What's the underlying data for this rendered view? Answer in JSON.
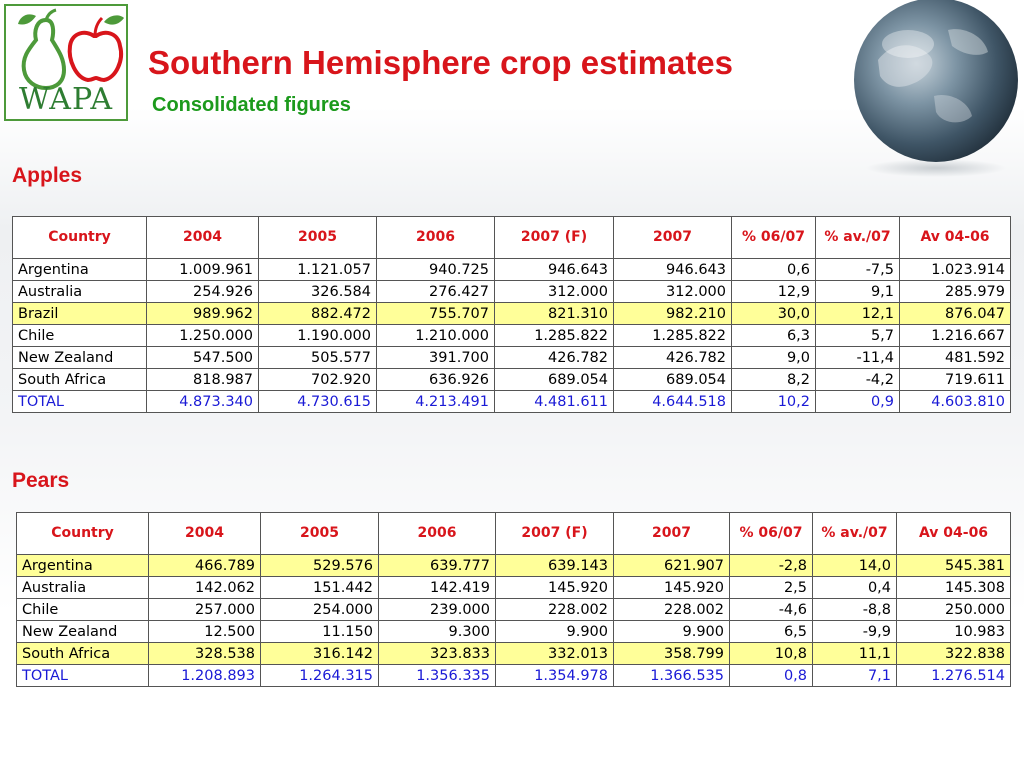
{
  "logo": {
    "text": "WAPA"
  },
  "title": "Southern Hemisphere crop estimates",
  "subtitle": "Consolidated figures",
  "headers": [
    "Country",
    "2004",
    "2005",
    "2006",
    "2007 (F)",
    "2007",
    "% 06/07",
    "% av./07",
    "Av 04-06"
  ],
  "colors": {
    "title": "#d8151b",
    "subtitle": "#1c9a1c",
    "highlight": "#ffff99",
    "total": "#1a1ad6"
  },
  "apples": {
    "label": "Apples",
    "rows": [
      {
        "country": "Argentina",
        "v2004": "1.009.961",
        "v2005": "1.121.057",
        "v2006": "940.725",
        "v2007f": "946.643",
        "v2007": "946.643",
        "pct0607": "0,6",
        "pctav07": "-7,5",
        "av0406": "1.023.914",
        "highlight": false
      },
      {
        "country": "Australia",
        "v2004": "254.926",
        "v2005": "326.584",
        "v2006": "276.427",
        "v2007f": "312.000",
        "v2007": "312.000",
        "pct0607": "12,9",
        "pctav07": "9,1",
        "av0406": "285.979",
        "highlight": false
      },
      {
        "country": "Brazil",
        "v2004": "989.962",
        "v2005": "882.472",
        "v2006": "755.707",
        "v2007f": "821.310",
        "v2007": "982.210",
        "pct0607": "30,0",
        "pctav07": "12,1",
        "av0406": "876.047",
        "highlight": true
      },
      {
        "country": "Chile",
        "v2004": "1.250.000",
        "v2005": "1.190.000",
        "v2006": "1.210.000",
        "v2007f": "1.285.822",
        "v2007": "1.285.822",
        "pct0607": "6,3",
        "pctav07": "5,7",
        "av0406": "1.216.667",
        "highlight": false
      },
      {
        "country": "New Zealand",
        "v2004": "547.500",
        "v2005": "505.577",
        "v2006": "391.700",
        "v2007f": "426.782",
        "v2007": "426.782",
        "pct0607": "9,0",
        "pctav07": "-11,4",
        "av0406": "481.592",
        "highlight": false
      },
      {
        "country": "South Africa",
        "v2004": "818.987",
        "v2005": "702.920",
        "v2006": "636.926",
        "v2007f": "689.054",
        "v2007": "689.054",
        "pct0607": "8,2",
        "pctav07": "-4,2",
        "av0406": "719.611",
        "highlight": false
      }
    ],
    "total": {
      "country": "TOTAL",
      "v2004": "4.873.340",
      "v2005": "4.730.615",
      "v2006": "4.213.491",
      "v2007f": "4.481.611",
      "v2007": "4.644.518",
      "pct0607": "10,2",
      "pctav07": "0,9",
      "av0406": "4.603.810"
    }
  },
  "pears": {
    "label": "Pears",
    "rows": [
      {
        "country": "Argentina",
        "v2004": "466.789",
        "v2005": "529.576",
        "v2006": "639.777",
        "v2007f": "639.143",
        "v2007": "621.907",
        "pct0607": "-2,8",
        "pctav07": "14,0",
        "av0406": "545.381",
        "highlight": true
      },
      {
        "country": "Australia",
        "v2004": "142.062",
        "v2005": "151.442",
        "v2006": "142.419",
        "v2007f": "145.920",
        "v2007": "145.920",
        "pct0607": "2,5",
        "pctav07": "0,4",
        "av0406": "145.308",
        "highlight": false
      },
      {
        "country": "Chile",
        "v2004": "257.000",
        "v2005": "254.000",
        "v2006": "239.000",
        "v2007f": "228.002",
        "v2007": "228.002",
        "pct0607": "-4,6",
        "pctav07": "-8,8",
        "av0406": "250.000",
        "highlight": false
      },
      {
        "country": "New Zealand",
        "v2004": "12.500",
        "v2005": "11.150",
        "v2006": "9.300",
        "v2007f": "9.900",
        "v2007": "9.900",
        "pct0607": "6,5",
        "pctav07": "-9,9",
        "av0406": "10.983",
        "highlight": false
      },
      {
        "country": "South Africa",
        "v2004": "328.538",
        "v2005": "316.142",
        "v2006": "323.833",
        "v2007f": "332.013",
        "v2007": "358.799",
        "pct0607": "10,8",
        "pctav07": "11,1",
        "av0406": "322.838",
        "highlight": true
      }
    ],
    "total": {
      "country": "TOTAL",
      "v2004": "1.208.893",
      "v2005": "1.264.315",
      "v2006": "1.356.335",
      "v2007f": "1.354.978",
      "v2007": "1.366.535",
      "pct0607": "0,8",
      "pctav07": "7,1",
      "av0406": "1.276.514"
    }
  }
}
